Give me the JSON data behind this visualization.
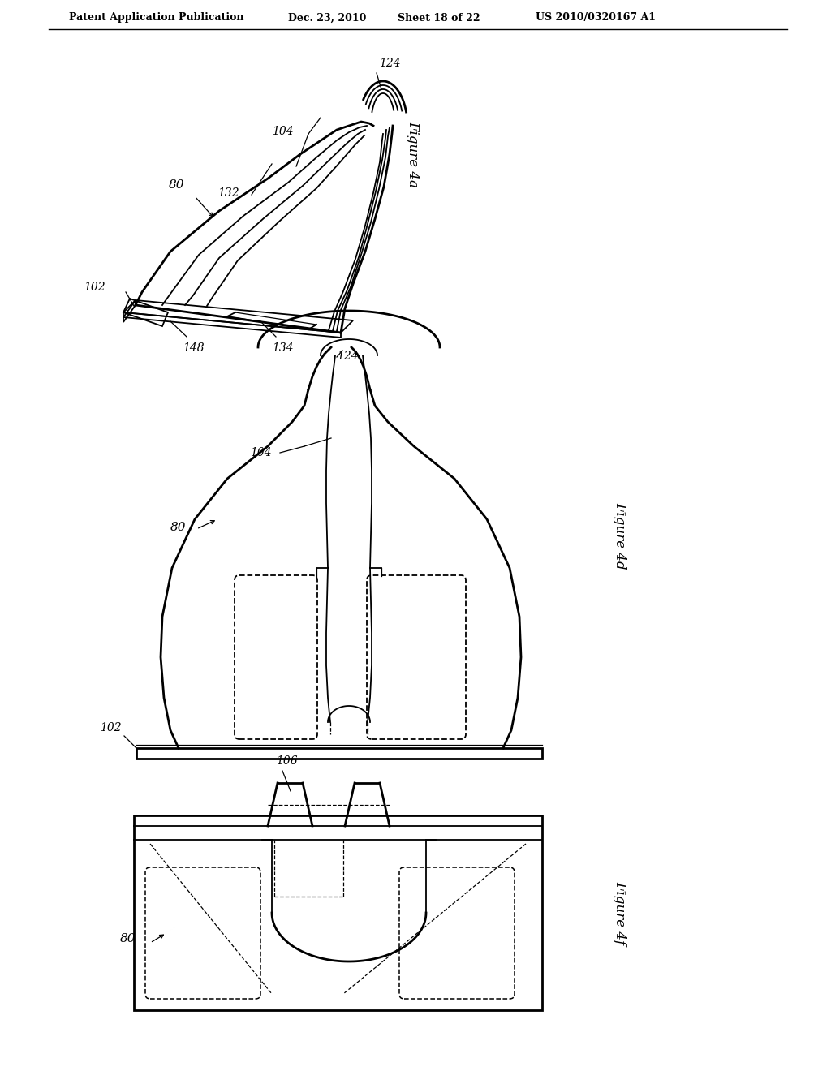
{
  "bg_color": "#ffffff",
  "line_color": "#000000",
  "header_text": "Patent Application Publication",
  "header_date": "Dec. 23, 2010",
  "header_sheet": "Sheet 18 of 22",
  "header_patent": "US 2010/0320167 A1",
  "fig4a_label": "Figure 4a",
  "fig4d_label": "Figure 4d",
  "fig4f_label": "Figure 4f"
}
